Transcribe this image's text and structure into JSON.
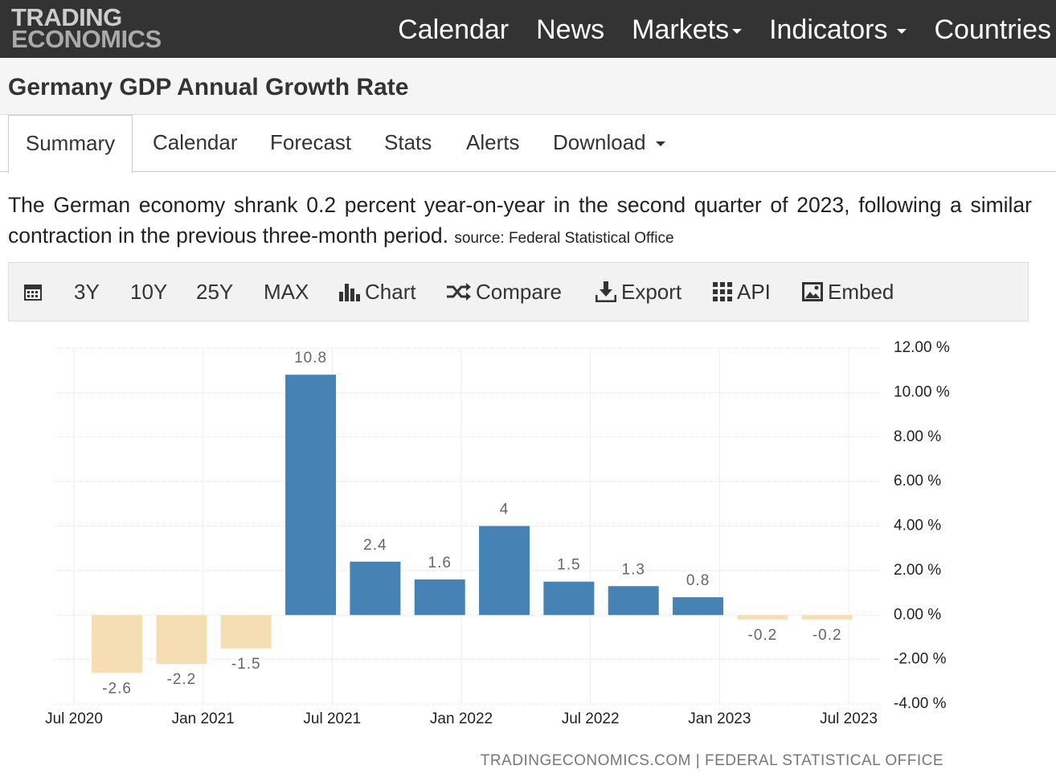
{
  "header": {
    "logo": [
      "TRADING",
      "ECONOMICS"
    ],
    "nav": [
      "Calendar",
      "News",
      "Markets",
      "Indicators",
      "Countries"
    ]
  },
  "page_title": "Germany GDP Annual Growth Rate",
  "tabs": [
    "Summary",
    "Calendar",
    "Forecast",
    "Stats",
    "Alerts",
    "Download"
  ],
  "description": "The German economy shrank 0.2 percent year-on-year in the second quarter of 2023, following a similar contraction in the previous three-month period.",
  "source": "source: Federal Statistical Office",
  "toolbar": [
    "3Y",
    "10Y",
    "25Y",
    "MAX",
    "Chart",
    "Compare",
    "Export",
    "API",
    "Embed"
  ],
  "chart_data": {
    "type": "bar",
    "x": [
      "2020-09",
      "2020-12",
      "2021-03",
      "2021-06",
      "2021-09",
      "2021-12",
      "2022-03",
      "2022-06",
      "2022-09",
      "2022-12",
      "2023-03",
      "2023-06"
    ],
    "values": [
      -2.6,
      -2.2,
      -1.5,
      10.8,
      2.4,
      1.6,
      4,
      1.5,
      1.3,
      0.8,
      -0.2,
      -0.2
    ],
    "color": "#4682b4",
    "negative_color": "#f5deb3",
    "ylim": [
      -4,
      12
    ],
    "yticks": [
      {
        "value": -4,
        "label": "-4.00 %"
      },
      {
        "value": -2,
        "label": "-2.00 %"
      },
      {
        "value": 0,
        "label": "0.00 %"
      },
      {
        "value": 2,
        "label": "2.00 %"
      },
      {
        "value": 4,
        "label": "4.00 %"
      },
      {
        "value": 6,
        "label": "6.00 %"
      },
      {
        "value": 8,
        "label": "8.00 %"
      },
      {
        "value": 10,
        "label": "10.00 %"
      },
      {
        "value": 12,
        "label": "12.00 %"
      }
    ],
    "xticks": [
      {
        "value": "2020-07",
        "label": "Jul 2020"
      },
      {
        "value": "2021-01",
        "label": "Jan 2021"
      },
      {
        "value": "2021-07",
        "label": "Jul 2021"
      },
      {
        "value": "2022-01",
        "label": "Jan 2022"
      },
      {
        "value": "2022-07",
        "label": "Jul 2022"
      },
      {
        "value": "2023-01",
        "label": "Jan 2023"
      },
      {
        "value": "2023-07",
        "label": "Jul 2023"
      }
    ],
    "grid": true,
    "credits": "TRADINGECONOMICS.COM | FEDERAL STATISTICAL OFFICE"
  }
}
